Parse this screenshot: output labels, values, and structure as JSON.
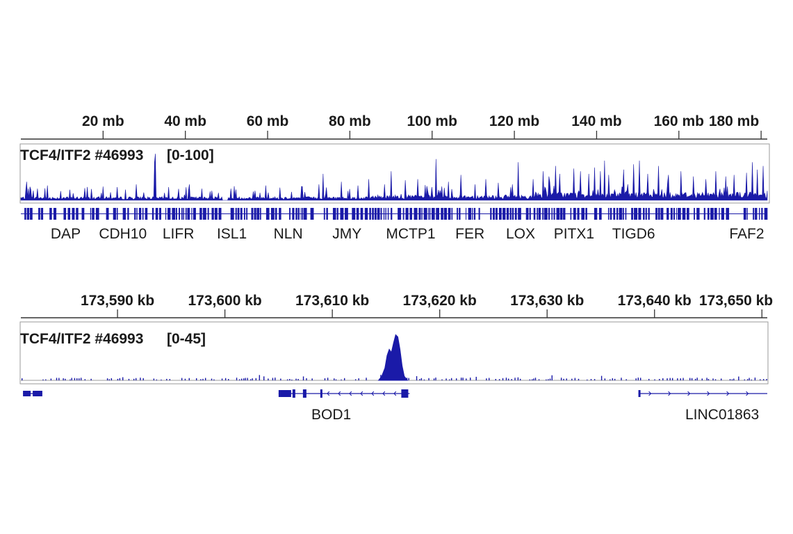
{
  "colors": {
    "signal": "#1a1aa8",
    "gene": "#1a1aa8",
    "axis": "#333333",
    "frame": "#9a9a9a",
    "text": "#1a1a1a"
  },
  "chart_data": [
    {
      "type": "area",
      "id": "genome-wide",
      "x_unit": "mb",
      "x_range": [
        0,
        181.5
      ],
      "ticks": [
        {
          "value": 20,
          "label": "20 mb"
        },
        {
          "value": 40,
          "label": "40 mb"
        },
        {
          "value": 60,
          "label": "60 mb"
        },
        {
          "value": 80,
          "label": "80 mb"
        },
        {
          "value": 100,
          "label": "100 mb"
        },
        {
          "value": 120,
          "label": "120 mb"
        },
        {
          "value": 140,
          "label": "140 mb"
        },
        {
          "value": 160,
          "label": "160 mb"
        },
        {
          "value": 180,
          "label": "180 mb"
        }
      ],
      "track_name": "TCF4/ITF2 #46993",
      "track_range_label": "[0-100]",
      "ylim": [
        0,
        100
      ],
      "peaks": [
        {
          "x": 1.5,
          "y": 35
        },
        {
          "x": 4.0,
          "y": 22
        },
        {
          "x": 6.5,
          "y": 28
        },
        {
          "x": 12.0,
          "y": 20
        },
        {
          "x": 23.5,
          "y": 25
        },
        {
          "x": 28.0,
          "y": 30
        },
        {
          "x": 32.5,
          "y": 72
        },
        {
          "x": 32.8,
          "y": 88
        },
        {
          "x": 36.0,
          "y": 25
        },
        {
          "x": 41.0,
          "y": 30
        },
        {
          "x": 44.0,
          "y": 22
        },
        {
          "x": 46.5,
          "y": 18
        },
        {
          "x": 51.0,
          "y": 22
        },
        {
          "x": 57.0,
          "y": 18
        },
        {
          "x": 59.5,
          "y": 28
        },
        {
          "x": 63.0,
          "y": 24
        },
        {
          "x": 68.5,
          "y": 26
        },
        {
          "x": 72.5,
          "y": 30
        },
        {
          "x": 73.5,
          "y": 50
        },
        {
          "x": 78.0,
          "y": 35
        },
        {
          "x": 82.0,
          "y": 28
        },
        {
          "x": 84.5,
          "y": 40
        },
        {
          "x": 88.5,
          "y": 30
        },
        {
          "x": 90.0,
          "y": 55
        },
        {
          "x": 93.5,
          "y": 38
        },
        {
          "x": 96.5,
          "y": 40
        },
        {
          "x": 100.0,
          "y": 25
        },
        {
          "x": 101.0,
          "y": 78
        },
        {
          "x": 104.0,
          "y": 35
        },
        {
          "x": 107.0,
          "y": 48
        },
        {
          "x": 110.5,
          "y": 30
        },
        {
          "x": 113.0,
          "y": 40
        },
        {
          "x": 116.0,
          "y": 33
        },
        {
          "x": 119.5,
          "y": 30
        },
        {
          "x": 121.0,
          "y": 72
        },
        {
          "x": 124.5,
          "y": 40
        },
        {
          "x": 127.0,
          "y": 55
        },
        {
          "x": 128.5,
          "y": 45
        },
        {
          "x": 130.0,
          "y": 65
        },
        {
          "x": 131.0,
          "y": 50
        },
        {
          "x": 134.5,
          "y": 60
        },
        {
          "x": 136.0,
          "y": 55
        },
        {
          "x": 138.0,
          "y": 50
        },
        {
          "x": 139.5,
          "y": 62
        },
        {
          "x": 141.0,
          "y": 55
        },
        {
          "x": 142.0,
          "y": 75
        },
        {
          "x": 143.0,
          "y": 48
        },
        {
          "x": 146.5,
          "y": 58
        },
        {
          "x": 149.0,
          "y": 68
        },
        {
          "x": 150.5,
          "y": 75
        },
        {
          "x": 152.5,
          "y": 50
        },
        {
          "x": 155.0,
          "y": 65
        },
        {
          "x": 157.5,
          "y": 48
        },
        {
          "x": 160.5,
          "y": 55
        },
        {
          "x": 163.5,
          "y": 45
        },
        {
          "x": 166.5,
          "y": 40
        },
        {
          "x": 169.0,
          "y": 55
        },
        {
          "x": 171.5,
          "y": 45
        },
        {
          "x": 173.5,
          "y": 48
        },
        {
          "x": 176.5,
          "y": 52
        },
        {
          "x": 177.8,
          "y": 72
        },
        {
          "x": 179.0,
          "y": 58
        },
        {
          "x": 180.5,
          "y": 65
        }
      ],
      "gaps": [
        [
          49.0,
          50.3
        ]
      ],
      "genes": [
        {
          "name": "DAP",
          "x": 10.9
        },
        {
          "name": "CDH10",
          "x": 24.8
        },
        {
          "name": "LIFR",
          "x": 38.3
        },
        {
          "name": "ISL1",
          "x": 51.3
        },
        {
          "name": "NLN",
          "x": 65.0
        },
        {
          "name": "JMY",
          "x": 79.3
        },
        {
          "name": "MCTP1",
          "x": 94.8
        },
        {
          "name": "FER",
          "x": 109.2
        },
        {
          "name": "LOX",
          "x": 121.5
        },
        {
          "name": "PITX1",
          "x": 134.5
        },
        {
          "name": "TIGD6",
          "x": 149.0
        },
        {
          "name": "FAF2",
          "x": 176.5
        }
      ]
    },
    {
      "type": "area",
      "id": "locus-zoom",
      "x_unit": "kb",
      "x_range": [
        173581.0,
        173650.5
      ],
      "ticks": [
        {
          "value": 173590,
          "label": "173,590 kb"
        },
        {
          "value": 173600,
          "label": "173,600 kb"
        },
        {
          "value": 173610,
          "label": "173,610 kb"
        },
        {
          "value": 173620,
          "label": "173,620 kb"
        },
        {
          "value": 173630,
          "label": "173,630 kb"
        },
        {
          "value": 173640,
          "label": "173,640 kb"
        },
        {
          "value": 173650,
          "label": "173,650 kb"
        }
      ],
      "track_name": "TCF4/ITF2 #46993",
      "track_range_label": "[0-45]",
      "ylim": [
        0,
        45
      ],
      "peak": [
        {
          "x": 173614.3,
          "y": 0
        },
        {
          "x": 173614.6,
          "y": 4
        },
        {
          "x": 173614.9,
          "y": 12
        },
        {
          "x": 173615.1,
          "y": 24
        },
        {
          "x": 173615.3,
          "y": 30
        },
        {
          "x": 173615.5,
          "y": 27
        },
        {
          "x": 173615.7,
          "y": 36
        },
        {
          "x": 173615.9,
          "y": 44
        },
        {
          "x": 173616.1,
          "y": 42
        },
        {
          "x": 173616.3,
          "y": 30
        },
        {
          "x": 173616.5,
          "y": 14
        },
        {
          "x": 173616.7,
          "y": 4
        },
        {
          "x": 173617.0,
          "y": 0
        }
      ],
      "genes": [
        {
          "name": "",
          "x_start": 173581.2,
          "x_end": 173583.0
        },
        {
          "name": "BOD1",
          "x_start": 173605.0,
          "x_end": 173617.2,
          "label_x": 173609.9
        },
        {
          "name": "LINC01863",
          "x_start": 173638.5,
          "x_end": 173650.5,
          "label_x": 173646.3
        }
      ]
    }
  ]
}
